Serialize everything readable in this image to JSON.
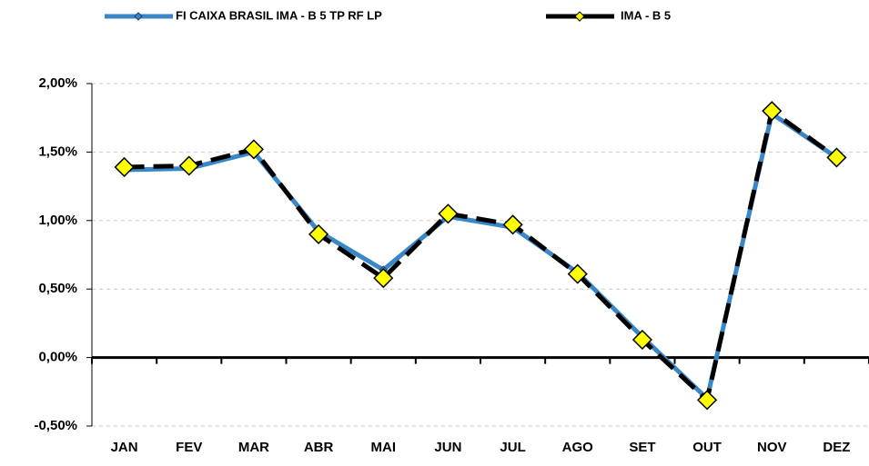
{
  "chart_data": {
    "type": "line",
    "categories": [
      "JAN",
      "FEV",
      "MAR",
      "ABR",
      "MAI",
      "JUN",
      "JUL",
      "AGO",
      "SET",
      "OUT",
      "NOV",
      "DEZ"
    ],
    "series": [
      {
        "name": "FI CAIXA BRASIL IMA - B 5 TP RF LP",
        "color": "#3a87c8",
        "values": [
          1.37,
          1.38,
          1.5,
          0.92,
          0.64,
          1.03,
          0.95,
          0.62,
          0.15,
          -0.3,
          1.78,
          1.46
        ]
      },
      {
        "name": "IMA - B 5",
        "color": "#000000",
        "marker_color": "#ffff00",
        "values": [
          1.39,
          1.4,
          1.52,
          0.9,
          0.58,
          1.05,
          0.97,
          0.61,
          0.13,
          -0.31,
          1.8,
          1.46
        ]
      }
    ],
    "ylim": [
      -0.5,
      2.0
    ],
    "yticks": [
      {
        "value": -0.5,
        "label": "-0,50%"
      },
      {
        "value": 0,
        "label": "0,00%"
      },
      {
        "value": 0.5,
        "label": "0,50%"
      },
      {
        "value": 1.0,
        "label": "1,00%"
      },
      {
        "value": 1.5,
        "label": "1,50%"
      },
      {
        "value": 2.0,
        "label": "2,00%"
      }
    ],
    "grid": true,
    "legend": "top"
  }
}
